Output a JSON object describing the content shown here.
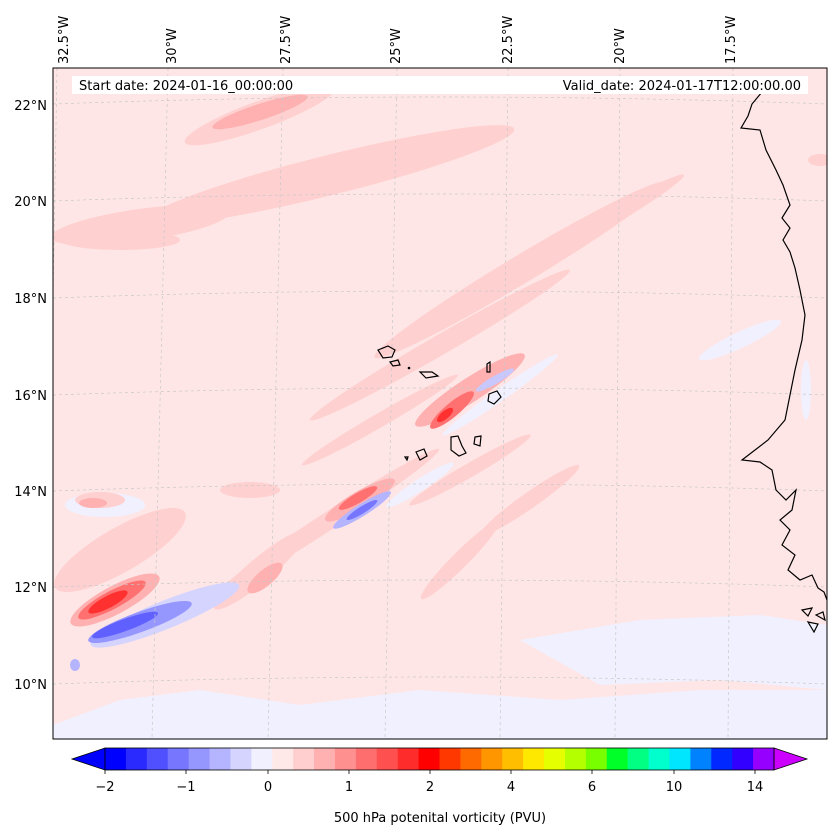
{
  "header": {
    "start_date": "Start date: 2024-01-16_00:00:00",
    "valid_date": "Valid_date: 2024-01-17T12:00:00.00"
  },
  "map": {
    "region": "Eastern tropical Atlantic / West Africa coast",
    "lon_labels": [
      "32.5°W",
      "30°W",
      "27.5°W",
      "25°W",
      "22.5°W",
      "20°W",
      "17.5°W"
    ],
    "lat_labels": [
      "22°N",
      "20°N",
      "18°N",
      "16°N",
      "14°N",
      "12°N",
      "10°N"
    ],
    "background_color": "#ffe5e5",
    "coastline_color": "#000000",
    "gridline_color": "#bbbbbb"
  },
  "colorbar": {
    "label": "500 hPa potenital vorticity (PVU)",
    "tick_labels": [
      "−2",
      "−1",
      "0",
      "1",
      "2",
      "4",
      "6",
      "10",
      "14"
    ],
    "colors": [
      "#0000ff",
      "#2a2aff",
      "#5050ff",
      "#7676ff",
      "#9696ff",
      "#b4b4ff",
      "#d4d4ff",
      "#f0f0ff",
      "#ffe8e8",
      "#ffcfcf",
      "#ffb0b0",
      "#ff9090",
      "#ff6e6e",
      "#ff5050",
      "#ff2c2c",
      "#ff0000",
      "#ff3800",
      "#ff6a00",
      "#ff9600",
      "#ffbe00",
      "#ffe800",
      "#e6ff00",
      "#b4ff00",
      "#78ff00",
      "#00ff28",
      "#00ff82",
      "#00ffcc",
      "#00e6ff",
      "#0082ff",
      "#0028ff",
      "#3200ff",
      "#9600ff"
    ],
    "under_color": "#0000ff",
    "over_color": "#cc00ff"
  }
}
